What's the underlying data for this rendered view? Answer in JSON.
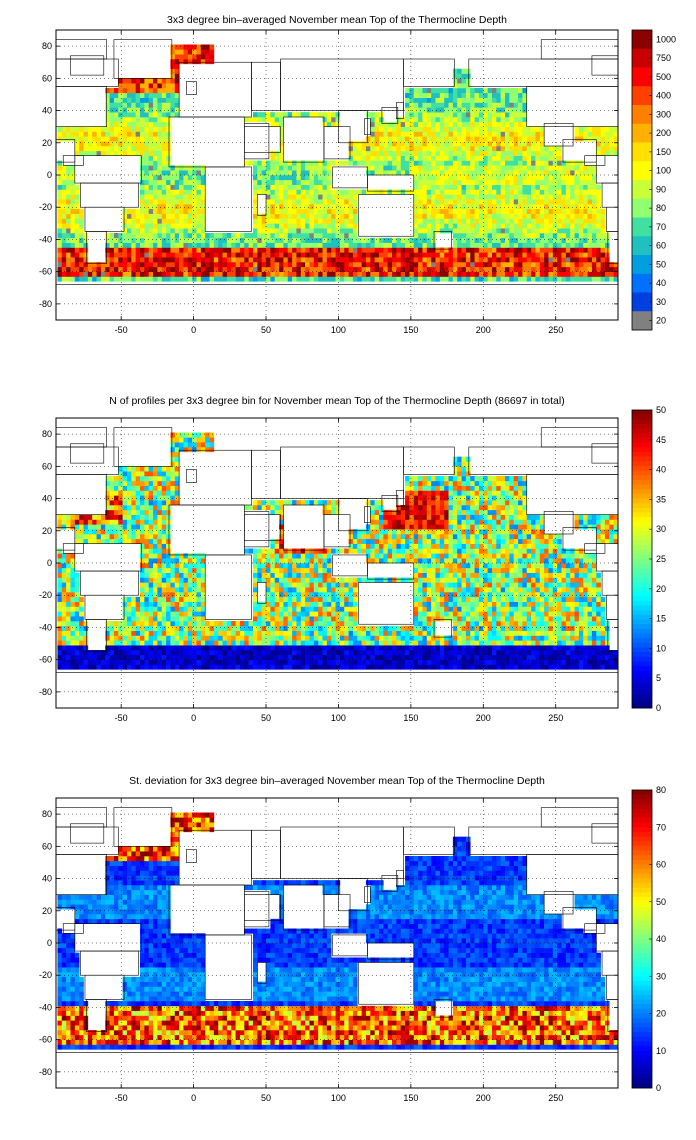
{
  "chart_data": [
    {
      "type": "heatmap",
      "title": "3x3 degree bin–averaged November mean Top of the Thermocline Depth",
      "xlabel": "",
      "ylabel": "",
      "xlim": [
        -95,
        293
      ],
      "ylim": [
        -90,
        90
      ],
      "x_ticks": [
        -50,
        0,
        50,
        100,
        150,
        200,
        250
      ],
      "y_ticks": [
        80,
        60,
        40,
        20,
        0,
        -20,
        -40,
        -60,
        -80
      ],
      "grid": true,
      "colorbar": {
        "scale": "categorical",
        "ticks": [
          "1000",
          "750",
          "500",
          "400",
          "300",
          "200",
          "150",
          "100",
          "90",
          "80",
          "70",
          "60",
          "50",
          "40",
          "30",
          "20"
        ],
        "colors": [
          "#8b0000",
          "#c80000",
          "#ff0000",
          "#ff4000",
          "#ff8000",
          "#ffb000",
          "#ffe000",
          "#ffff00",
          "#c8ff38",
          "#90ff70",
          "#40e0a0",
          "#20c0c0",
          "#00a0e0",
          "#0070ff",
          "#0040e0",
          "#808080"
        ]
      }
    },
    {
      "type": "heatmap",
      "title": "N of profiles per 3x3 degree bin for November mean Top of the Thermocline Depth  (86697 in total)",
      "xlabel": "",
      "ylabel": "",
      "xlim": [
        -95,
        293
      ],
      "ylim": [
        -90,
        90
      ],
      "x_ticks": [
        -50,
        0,
        50,
        100,
        150,
        200,
        250
      ],
      "y_ticks": [
        80,
        60,
        40,
        20,
        0,
        -20,
        -40,
        -60,
        -80
      ],
      "grid": true,
      "colorbar": {
        "scale": "linear",
        "range": [
          0,
          50
        ],
        "ticks": [
          50,
          45,
          40,
          35,
          30,
          25,
          20,
          15,
          10,
          5,
          0
        ]
      }
    },
    {
      "type": "heatmap",
      "title": "St. deviation for 3x3 degree bin–averaged November mean Top of the Thermocline Depth",
      "xlabel": "",
      "ylabel": "",
      "xlim": [
        -95,
        293
      ],
      "ylim": [
        -90,
        90
      ],
      "x_ticks": [
        -50,
        0,
        50,
        100,
        150,
        200,
        250
      ],
      "y_ticks": [
        80,
        60,
        40,
        20,
        0,
        -20,
        -40,
        -60,
        -80
      ],
      "grid": true,
      "colorbar": {
        "scale": "linear",
        "range": [
          0,
          80
        ],
        "ticks": [
          80,
          70,
          60,
          50,
          40,
          30,
          20,
          10,
          0
        ]
      }
    }
  ]
}
